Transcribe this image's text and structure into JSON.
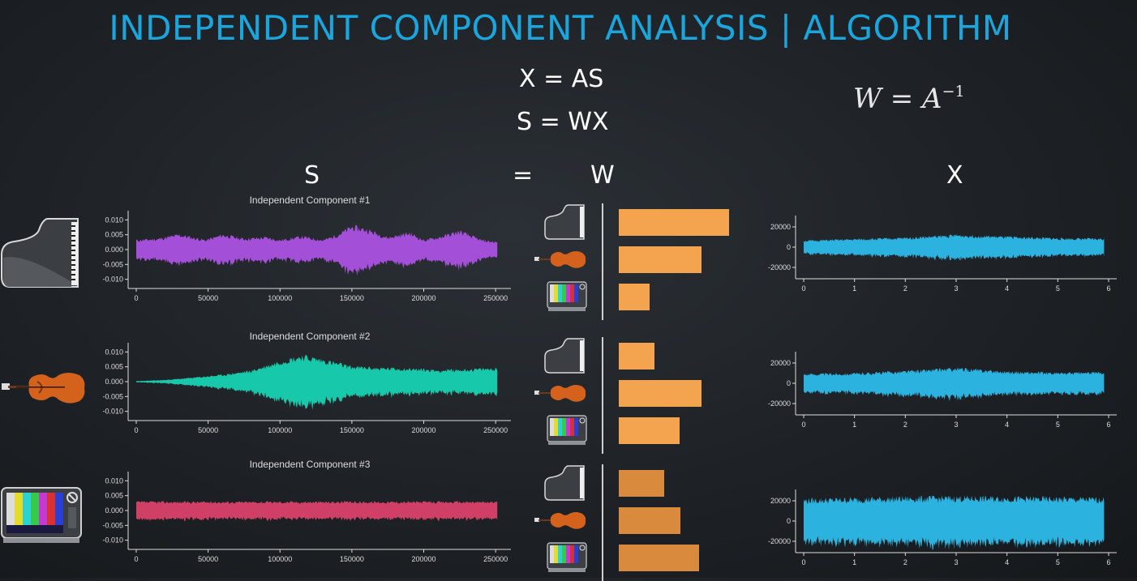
{
  "title": "INDEPENDENT COMPONENT ANALYSIS | ALGORITHM",
  "equations": {
    "eq1": "X = AS",
    "eq2": "S = WX"
  },
  "latex": {
    "base": "W = A",
    "exp": "−1"
  },
  "labels": {
    "s": "S",
    "equals": "=",
    "w": "W",
    "x": "X"
  },
  "colors": {
    "title": "#1aa6dc",
    "component_1": "#a44fd8",
    "component_2": "#17c9aa",
    "component_3": "#cf3f66",
    "mixture": "#2bb2de",
    "bar_top": "#f4a44e",
    "bar_bottom": "#d98a3c"
  },
  "icons": [
    "piano-icon",
    "violin-icon",
    "tv-icon"
  ],
  "chart_data": [
    {
      "type": "line",
      "title": "Independent Component #1",
      "color": "#a44fd8",
      "xlim": [
        0,
        255000
      ],
      "ylim": [
        -0.012,
        0.012
      ],
      "x_ticks": [
        "0",
        "50000",
        "100000",
        "150000",
        "200000",
        "250000"
      ],
      "y_ticks": [
        "0.010",
        "0.005",
        "0.000",
        "-0.005",
        "-0.010"
      ],
      "amplitude_envelope": {
        "x": [
          0,
          15000,
          30000,
          48000,
          60000,
          75000,
          90000,
          100000,
          115000,
          130000,
          140000,
          150000,
          160000,
          175000,
          190000,
          200000,
          210000,
          225000,
          240000,
          255000
        ],
        "y": [
          0.0035,
          0.004,
          0.0055,
          0.0035,
          0.0055,
          0.004,
          0.0045,
          0.0035,
          0.0048,
          0.0035,
          0.0055,
          0.0085,
          0.0075,
          0.0045,
          0.0062,
          0.0035,
          0.0045,
          0.0068,
          0.0035,
          0.0025
        ]
      }
    },
    {
      "type": "line",
      "title": "Independent Component #2",
      "color": "#17c9aa",
      "xlim": [
        0,
        255000
      ],
      "ylim": [
        -0.012,
        0.012
      ],
      "x_ticks": [
        "0",
        "50000",
        "100000",
        "150000",
        "200000",
        "250000"
      ],
      "y_ticks": [
        "0.010",
        "0.005",
        "0.000",
        "-0.005",
        "-0.010"
      ],
      "amplitude_envelope": {
        "x": [
          0,
          20000,
          40000,
          60000,
          80000,
          100000,
          115000,
          130000,
          150000,
          170000,
          190000,
          210000,
          230000,
          255000
        ],
        "y": [
          0.0002,
          0.0006,
          0.0015,
          0.0025,
          0.004,
          0.0075,
          0.0095,
          0.008,
          0.0055,
          0.005,
          0.0048,
          0.0042,
          0.0045,
          0.005
        ]
      }
    },
    {
      "type": "line",
      "title": "Independent Component #3",
      "color": "#cf3f66",
      "xlim": [
        0,
        255000
      ],
      "ylim": [
        -0.012,
        0.012
      ],
      "x_ticks": [
        "0",
        "50000",
        "100000",
        "150000",
        "200000",
        "250000"
      ],
      "y_ticks": [
        "0.010",
        "0.005",
        "0.000",
        "-0.005",
        "-0.010"
      ],
      "amplitude_envelope": {
        "x": [
          0,
          255000
        ],
        "y": [
          0.0032,
          0.0032
        ]
      }
    },
    {
      "type": "bar",
      "orientation": "horizontal",
      "categories": [
        "piano",
        "violin",
        "tv"
      ],
      "groups": [
        {
          "values": [
            1.0,
            0.75,
            0.28
          ]
        },
        {
          "values": [
            0.32,
            0.75,
            0.55
          ]
        },
        {
          "values": [
            0.41,
            0.56,
            0.73
          ]
        }
      ]
    },
    {
      "type": "line",
      "color": "#2bb2de",
      "xlim": [
        0,
        6
      ],
      "ylim": [
        -28000,
        28000
      ],
      "x_ticks": [
        "0",
        "1",
        "2",
        "3",
        "4",
        "5",
        "6"
      ],
      "y_ticks": [
        "20000",
        "0",
        "-20000"
      ],
      "amplitude_envelope": {
        "x": [
          0,
          1,
          2,
          3,
          4,
          5,
          6
        ],
        "y": [
          7000,
          8500,
          10000,
          13000,
          11000,
          9500,
          9000
        ]
      }
    },
    {
      "type": "line",
      "color": "#2bb2de",
      "xlim": [
        0,
        6
      ],
      "ylim": [
        -28000,
        28000
      ],
      "x_ticks": [
        "0",
        "1",
        "2",
        "3",
        "4",
        "5",
        "6"
      ],
      "y_ticks": [
        "20000",
        "0",
        "-20000"
      ],
      "amplitude_envelope": {
        "x": [
          0,
          1,
          2,
          3,
          4,
          5,
          6
        ],
        "y": [
          10000,
          10500,
          13000,
          16000,
          12500,
          11000,
          12000
        ]
      }
    },
    {
      "type": "line",
      "color": "#2bb2de",
      "xlim": [
        0,
        6
      ],
      "ylim": [
        -28000,
        28000
      ],
      "x_ticks": [
        "0",
        "1",
        "2",
        "3",
        "4",
        "5",
        "6"
      ],
      "y_ticks": [
        "20000",
        "0",
        "-20000"
      ],
      "amplitude_envelope": {
        "x": [
          0,
          1,
          2,
          3,
          4,
          5,
          6
        ],
        "y": [
          23000,
          24000,
          25000,
          25500,
          25000,
          24500,
          24000
        ]
      }
    }
  ]
}
